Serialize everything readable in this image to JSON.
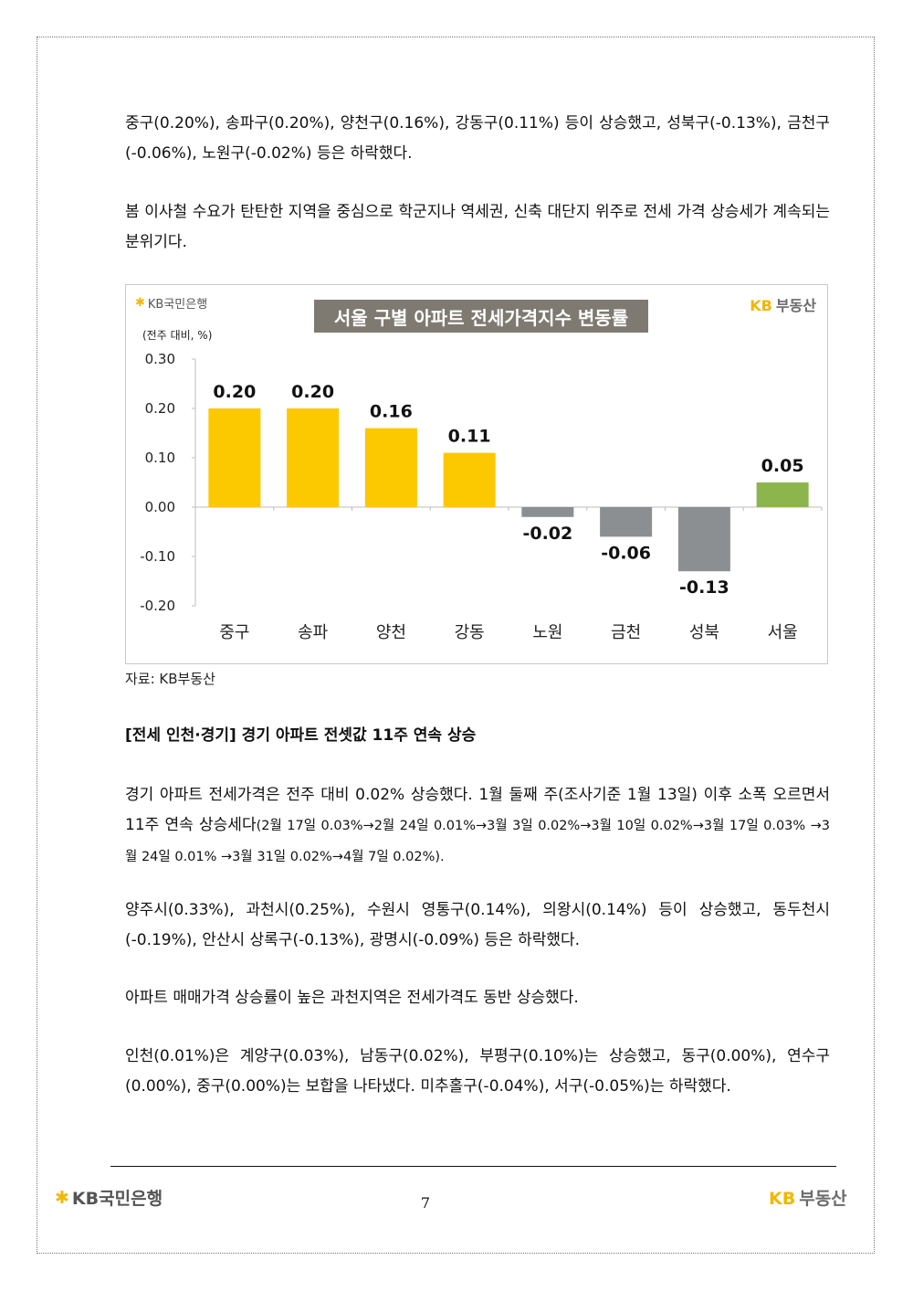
{
  "paragraphs": {
    "p1": "중구(0.20%), 송파구(0.20%), 양천구(0.16%), 강동구(0.11%) 등이 상승했고, 성북구(-0.13%), 금천구(-0.06%), 노원구(-0.02%) 등은 하락했다.",
    "p2": "봄 이사철 수요가 탄탄한 지역을 중심으로 학군지나 역세권, 신축 대단지 위주로 전세 가격 상승세가 계속되는 분위기다.",
    "p3a": "경기 아파트 전세가격은 전주 대비 0.02% 상승했다. 1월 둘째 주(조사기준 1월 13일) 이후 소폭 오르면서 11주 연속 상승세다",
    "p3b": "(2월 17일 0.03%→2월 24일 0.01%→3월 3일 0.02%→3월 10일 0.02%→3월 17일 0.03% →3월 24일 0.01% →3월 31일 0.02%→4월 7일 0.02%).",
    "p4": "양주시(0.33%), 과천시(0.25%), 수원시 영통구(0.14%), 의왕시(0.14%) 등이 상승했고, 동두천시(-0.19%), 안산시 상록구(-0.13%), 광명시(-0.09%) 등은 하락했다.",
    "p5": "아파트 매매가격 상승률이 높은 과천지역은 전세가격도 동반 상승했다.",
    "p6": "인천(0.01%)은 계양구(0.03%), 남동구(0.02%), 부평구(0.10%)는 상승했고, 동구(0.00%), 연수구(0.00%), 중구(0.00%)는 보합을 나타냈다. 미추홀구(-0.04%), 서구(-0.05%)는 하락했다."
  },
  "section_heading": "[전세 인천·경기] 경기 아파트 전셋값 11주 연속 상승",
  "source_note": "자료: KB부동산",
  "logos": {
    "bank_star": "✱",
    "bank_name": "KB국민은행",
    "realestate_kb": "KB",
    "realestate_name": "부동산"
  },
  "footer": {
    "page_number": "7"
  },
  "chart_data": {
    "type": "bar",
    "title": "서울 구별 아파트 전세가격지수 변동률",
    "unit_label": "(전주 대비, %)",
    "categories": [
      "중구",
      "송파",
      "양천",
      "강동",
      "노원",
      "금천",
      "성북",
      "서울"
    ],
    "values": [
      0.2,
      0.2,
      0.16,
      0.11,
      -0.02,
      -0.06,
      -0.13,
      0.05
    ],
    "value_labels": [
      "0.20",
      "0.20",
      "0.16",
      "0.11",
      "-0.02",
      "-0.06",
      "-0.13",
      "0.05"
    ],
    "ylim": [
      -0.2,
      0.3
    ],
    "yticks": [
      0.3,
      0.2,
      0.1,
      0.0,
      -0.1,
      -0.2
    ],
    "ytick_labels": [
      "0.30",
      "0.20",
      "0.10",
      "0.00",
      "-0.10",
      "-0.20"
    ],
    "colors": {
      "positive": "#fcc800",
      "negative": "#8c8f92",
      "seoul": "#8db54e"
    },
    "grid": false,
    "legend": "none"
  }
}
